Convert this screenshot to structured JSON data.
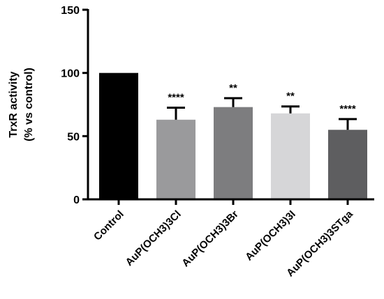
{
  "chart_data": {
    "type": "bar",
    "title": "",
    "ylabel": [
      "TrxR activity",
      "(% vs control)"
    ],
    "xlabel": "",
    "ylim": [
      0,
      150
    ],
    "yticks": [
      0,
      50,
      100,
      150
    ],
    "categories": [
      "Control",
      "AuP(OCH3)3Cl",
      "AuP(OCH3)3Br",
      "AuP(OCH3)3I",
      "AuP(OCH3)3STga"
    ],
    "values": [
      100,
      63,
      73,
      68,
      55
    ],
    "errors": [
      0,
      9.5,
      7,
      5.5,
      8.5
    ],
    "significance": [
      "",
      "****",
      "**",
      "**",
      "****"
    ],
    "colors": [
      "#000000",
      "#9a9a9c",
      "#7d7d7f",
      "#d6d6d8",
      "#5e5e60"
    ],
    "grid": false,
    "legend": "none"
  }
}
